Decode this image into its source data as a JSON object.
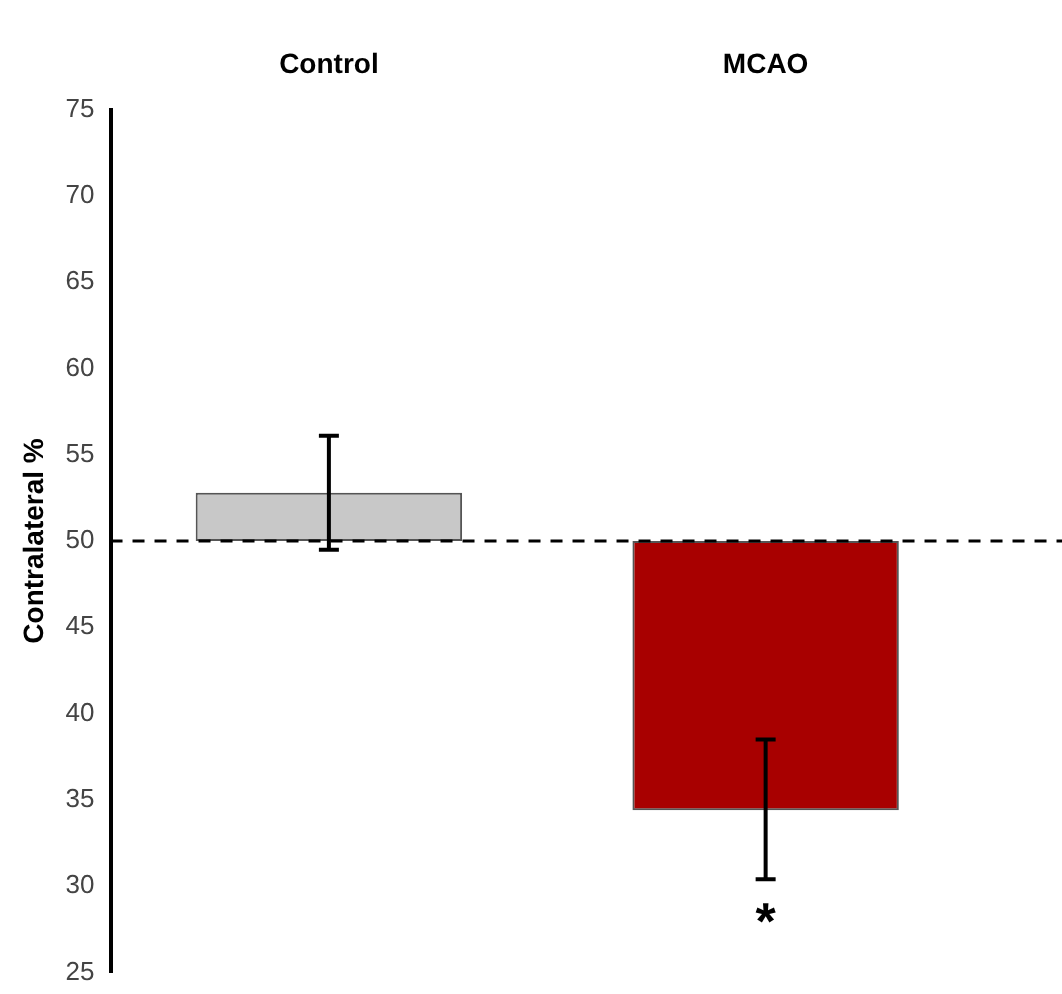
{
  "chart_data": {
    "type": "bar",
    "ylabel": "Contralateral %",
    "categories": [
      "Control",
      "MCAO"
    ],
    "base": [
      50,
      50
    ],
    "values": [
      2.8,
      -15.6
    ],
    "colors": [
      "#c8c8c8",
      "#a80000"
    ],
    "errors": [
      [
        49.5,
        56.1
      ],
      [
        30.4,
        38.5
      ]
    ],
    "ylim": [
      25,
      75
    ],
    "yticks": [
      25,
      30,
      35,
      40,
      45,
      50,
      55,
      60,
      65,
      70,
      75
    ],
    "ref_lines": [
      {
        "axis": "y",
        "value": 50,
        "line_style": "dashed",
        "color": "#000000"
      }
    ],
    "annotations": [
      "*"
    ]
  }
}
